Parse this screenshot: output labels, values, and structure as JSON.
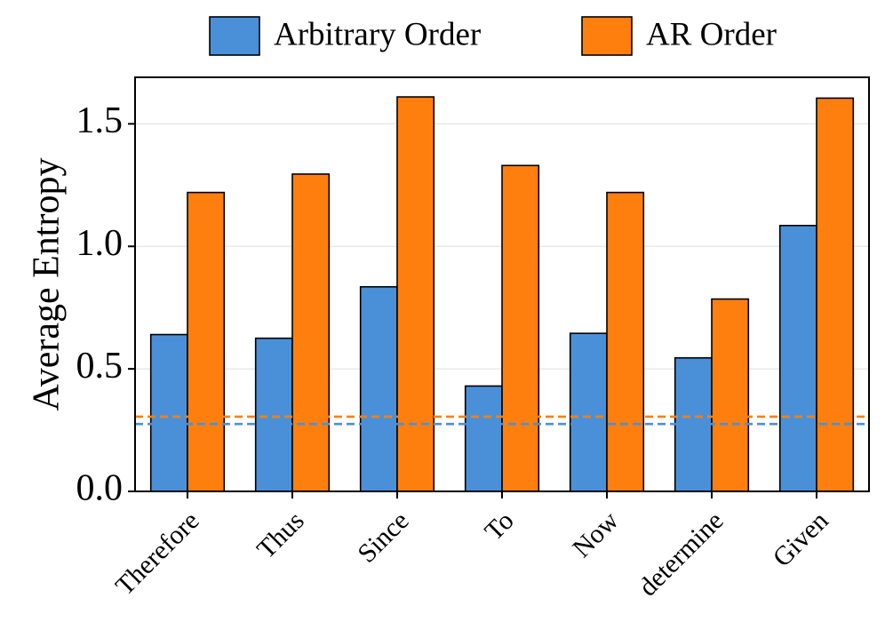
{
  "chart_data": {
    "type": "bar",
    "title": "",
    "xlabel": "",
    "ylabel": "Average Entropy",
    "categories": [
      "Therefore",
      "Thus",
      "Since",
      "To",
      "Now",
      "determine",
      "Given"
    ],
    "series": [
      {
        "name": "Arbitrary Order",
        "color": "#4a90d9",
        "values": [
          0.64,
          0.625,
          0.835,
          0.43,
          0.645,
          0.545,
          1.085
        ]
      },
      {
        "name": "AR Order",
        "color": "#ff7f0e",
        "values": [
          1.22,
          1.295,
          1.61,
          1.33,
          1.22,
          0.785,
          1.605
        ]
      }
    ],
    "reference_lines": [
      {
        "series": "Arbitrary Order",
        "value": 0.275,
        "style": "dashed",
        "color": "#4a90d9"
      },
      {
        "series": "AR Order",
        "value": 0.305,
        "style": "dashed",
        "color": "#ff7f0e"
      }
    ],
    "ylim": [
      0,
      1.69
    ],
    "yticks": [
      0.0,
      0.5,
      1.0,
      1.5
    ],
    "ytick_labels": [
      "0.0",
      "0.5",
      "1.0",
      "1.5"
    ],
    "grid": "y",
    "legend": {
      "position": "top-center, outside plot",
      "entries": [
        "Arbitrary Order",
        "AR Order"
      ]
    }
  }
}
